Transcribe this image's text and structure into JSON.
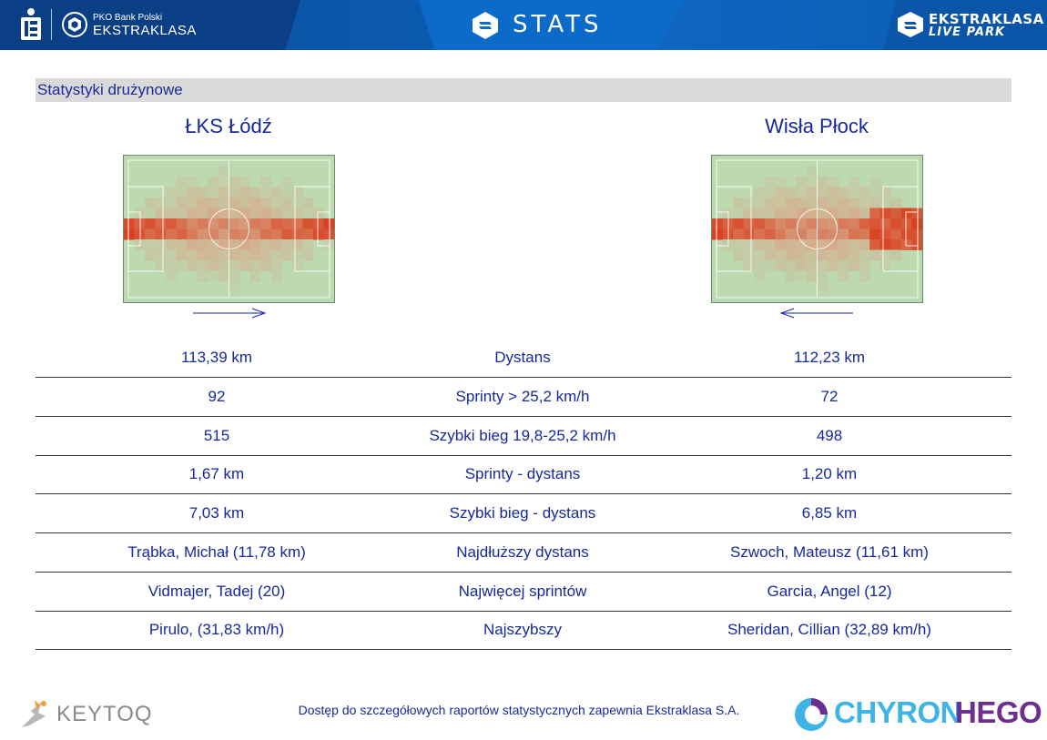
{
  "header": {
    "pko_sub": "PKO Bank Polski",
    "pko_main": "EKSTRAKLASA",
    "stats_title": "STATS",
    "live_park_line1": "EKSTRAKLASA",
    "live_park_line2": "LIVE PARK"
  },
  "section_title": "Statystyki drużynowe",
  "teams": {
    "home": {
      "name": "ŁKS Łódź",
      "attack_direction": "right"
    },
    "away": {
      "name": "Wisła Płock",
      "attack_direction": "left"
    }
  },
  "colors": {
    "header_blue": "#0b5cb3",
    "text_blue": "#16299a",
    "section_bar": "#d9d9d9",
    "pitch_green": "#bcd9b0",
    "heat_hot": "#d9401f"
  },
  "stats": [
    {
      "home": "113,39 km",
      "label": "Dystans",
      "away": "112,23 km"
    },
    {
      "home": "92",
      "label": "Sprinty > 25,2 km/h",
      "away": "72"
    },
    {
      "home": "515",
      "label": "Szybki bieg 19,8-25,2 km/h",
      "away": "498"
    },
    {
      "home": "1,67 km",
      "label": "Sprinty - dystans",
      "away": "1,20 km"
    },
    {
      "home": "7,03 km",
      "label": "Szybki bieg - dystans",
      "away": "6,85 km"
    },
    {
      "home": "Trąbka, Michał (11,78 km)",
      "label": "Najdłuższy dystans",
      "away": "Szwoch, Mateusz (11,61 km)"
    },
    {
      "home": "Vidmajer, Tadej (20)",
      "label": "Najwięcej sprintów",
      "away": "Garcia, Angel (12)"
    },
    {
      "home": "Pirulo,  (31,83 km/h)",
      "label": "Najszybszy",
      "away": "Sheridan, Cillian (32,89 km/h)"
    }
  ],
  "footer": {
    "keytoq": "KEYTOQ",
    "note": "Dostęp do szczegółowych raportów statystycznych zapewnia Ekstraklasa S.A.",
    "chyron_part1": "CHYRON",
    "chyron_part2": "HEGO"
  }
}
